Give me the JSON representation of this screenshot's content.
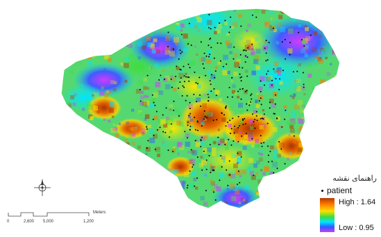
{
  "legend": {
    "title": "راهنمای نقشه",
    "point_label": "patient",
    "high_label": "High : 1.64",
    "low_label": "Low : 0.95"
  },
  "scalebar": {
    "unit": "Meters",
    "ticks": [
      "0",
      "2,600",
      "5,000",
      "1,200"
    ]
  },
  "colors": {
    "ramp": [
      "#b23a00",
      "#ff7a00",
      "#ffe000",
      "#3fdc3f",
      "#00e5ff",
      "#2e5bff",
      "#d23aff"
    ],
    "points": "#000000",
    "background": "#ffffff"
  },
  "icons": [
    "north-arrow-icon"
  ]
}
